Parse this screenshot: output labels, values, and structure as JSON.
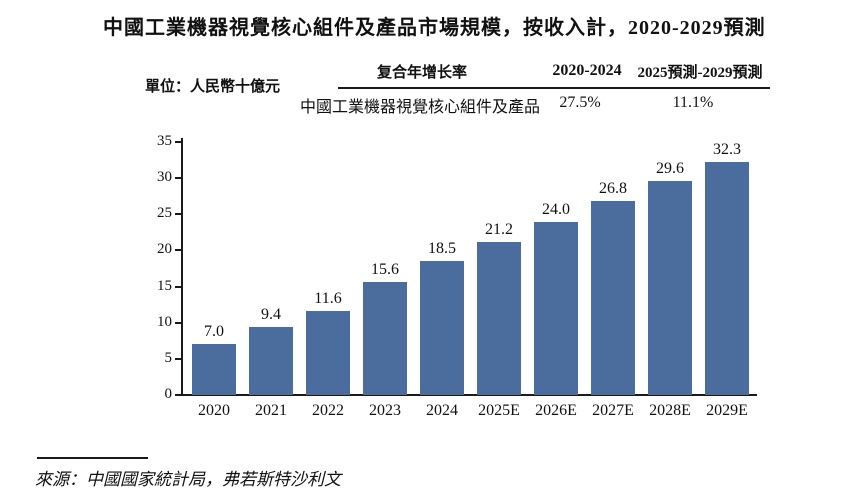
{
  "title": "中國工業機器視覺核心組件及產品市場規模，按收入計，2020-2029預測",
  "unit_label": "單位：人民幣十億元",
  "cagr_table": {
    "header_metric": "复合年增长率",
    "header_period1": "2020-2024",
    "header_period2": "2025預測-2029預測",
    "row_label": "中國工業機器視覺核心組件及產品",
    "cagr_2020_2024": "27.5%",
    "cagr_2025_2029": "11.1%"
  },
  "source": "來源：中國國家統計局，弗若斯特沙利文",
  "colors": {
    "bar": "#4a6d9e",
    "text": "#111111",
    "axis": "#1a1a1a"
  },
  "chart_data": {
    "type": "bar",
    "title": "中國工業機器視覺核心組件及產品市場規模，按收入計，2020-2029預測",
    "categories": [
      "2020",
      "2021",
      "2022",
      "2023",
      "2024",
      "2025E",
      "2026E",
      "2027E",
      "2028E",
      "2029E"
    ],
    "values": [
      7.0,
      9.4,
      11.6,
      15.6,
      18.5,
      21.2,
      24.0,
      26.8,
      29.6,
      32.3
    ],
    "value_decimals": 1,
    "xlabel": "",
    "ylabel": "單位：人民幣十億元",
    "ylim": [
      0,
      35
    ],
    "ytick_step": 5,
    "grid": false,
    "legend": null,
    "bar_color": "#4a6d9e",
    "cagr_annotations": {
      "2020-2024": "27.5%",
      "2025E-2029E": "11.1%"
    }
  }
}
